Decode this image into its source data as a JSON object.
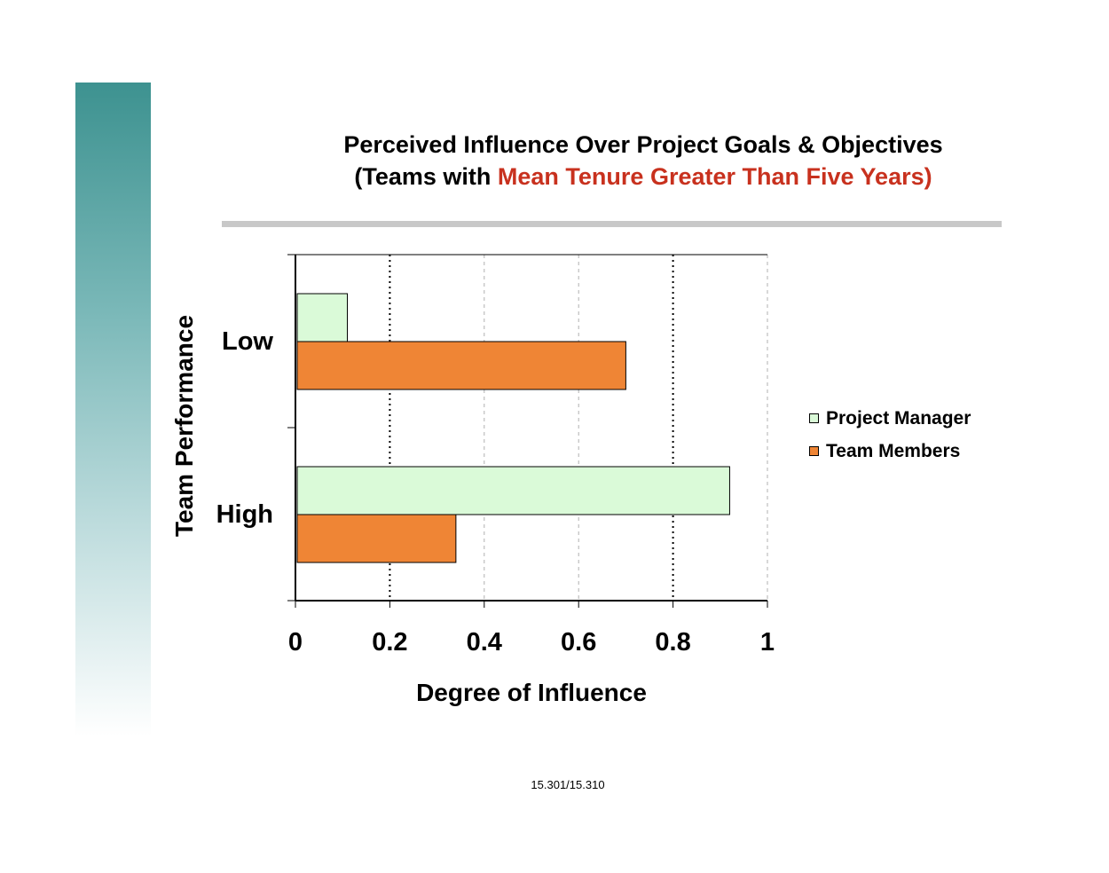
{
  "title_prefix": "Perceived Influence Over Project Goals & Objectives",
  "subtitle_open": "(Teams with ",
  "subtitle_accent": "Mean Tenure Greater Than Five Years)",
  "footer": "15.301/15.310",
  "colors": {
    "accent": "#c8311e",
    "project_manager": "#dafad8",
    "team_members": "#ef8535",
    "sidebar_top": "#3d9290"
  },
  "chart_data": {
    "type": "bar",
    "orientation": "horizontal",
    "title": "Perceived Influence Over Project Goals & Objectives (Teams with Mean Tenure Greater Than Five Years)",
    "xlabel": "Degree of Influence",
    "ylabel": "Team Performance",
    "categories": [
      "Low",
      "High"
    ],
    "series": [
      {
        "name": "Project Manager",
        "values": [
          0.11,
          0.92
        ],
        "color": "#dafad8"
      },
      {
        "name": "Team Members",
        "values": [
          0.7,
          0.34
        ],
        "color": "#ef8535"
      }
    ],
    "xlim": [
      0,
      1
    ],
    "xticks": [
      "0",
      "0.2",
      "0.4",
      "0.6",
      "0.8",
      "1"
    ],
    "grid": true,
    "legend_position": "right"
  }
}
